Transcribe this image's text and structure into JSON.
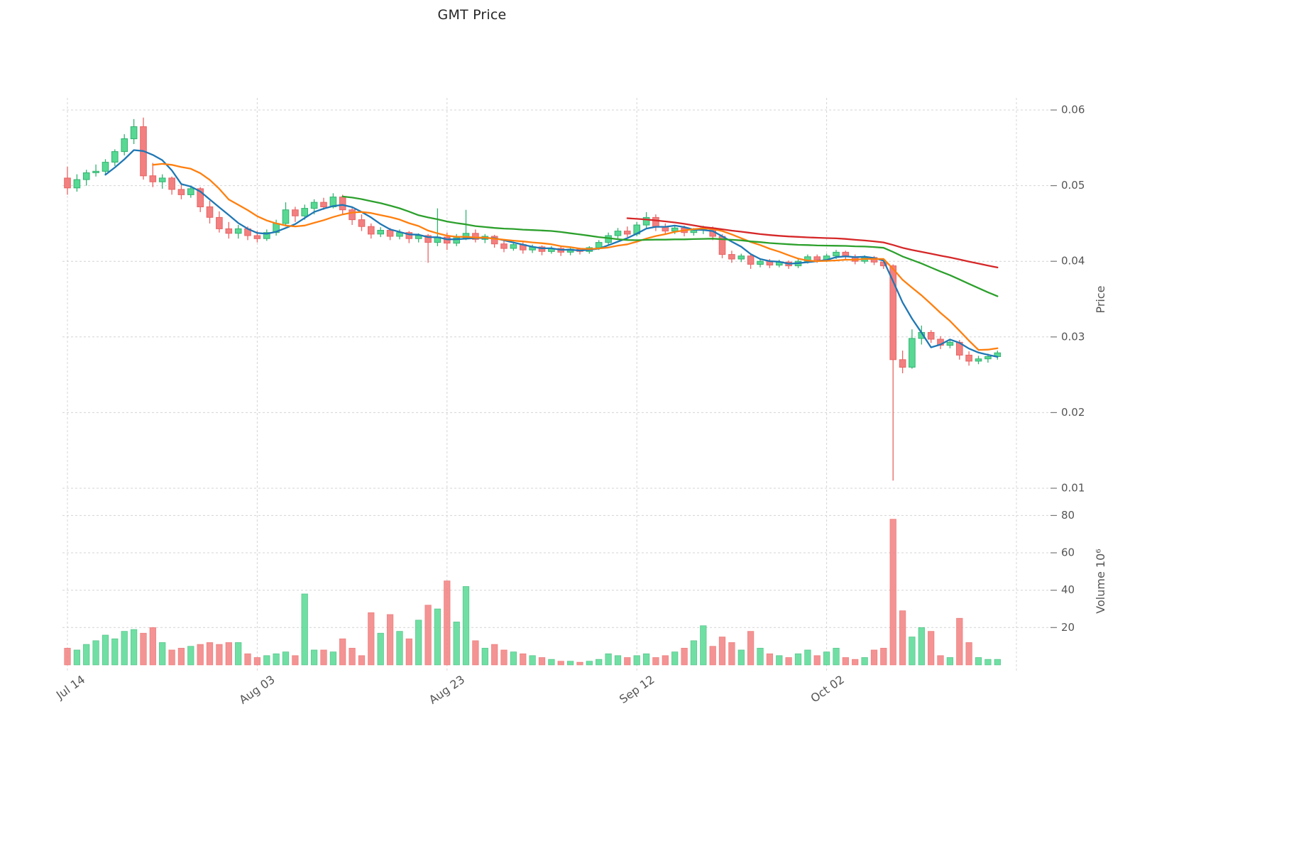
{
  "title": "GMT Price",
  "axes": {
    "price_label": "Price",
    "volume_label": "Volume  10⁶",
    "price_ticks": [
      0.01,
      0.02,
      0.03,
      0.04,
      0.05,
      0.06
    ],
    "volume_ticks": [
      20,
      40,
      60,
      80
    ],
    "x_ticks": [
      {
        "index": 0,
        "label": "Jul 14"
      },
      {
        "index": 20,
        "label": "Aug 03"
      },
      {
        "index": 40,
        "label": "Aug 23"
      },
      {
        "index": 60,
        "label": "Sep 12"
      },
      {
        "index": 80,
        "label": "Oct 02"
      }
    ],
    "extra_gridline_index": 100
  },
  "colors": {
    "up": "#57d993",
    "up_edge": "#33b271",
    "down": "#f28080",
    "down_edge": "#e96363",
    "grid": "#d4d4d4",
    "tick_text": "#555555",
    "tick_mark": "#777777"
  },
  "chart_data": {
    "type": "candlestick",
    "price_range": [
      0.01,
      0.06
    ],
    "volume_range": [
      0,
      90
    ],
    "volume_unit": "10^6",
    "grid": true,
    "moving_averages": [
      {
        "window": 5,
        "color": "#1f77b4"
      },
      {
        "window": 10,
        "color": "#ff7f0e"
      },
      {
        "window": 30,
        "color": "#2ca02c"
      },
      {
        "window": 60,
        "color": "#d62728"
      }
    ],
    "candles_format": [
      "open",
      "high",
      "low",
      "close",
      "volume_millions"
    ],
    "candles": [
      [
        0.051,
        0.0525,
        0.0488,
        0.0497,
        9
      ],
      [
        0.0497,
        0.0515,
        0.0492,
        0.0508,
        8
      ],
      [
        0.0508,
        0.0521,
        0.05,
        0.0517,
        11
      ],
      [
        0.0517,
        0.0528,
        0.0512,
        0.0519,
        13
      ],
      [
        0.0519,
        0.0535,
        0.0515,
        0.0531,
        16
      ],
      [
        0.0531,
        0.0548,
        0.0526,
        0.0545,
        14
      ],
      [
        0.0545,
        0.0568,
        0.054,
        0.0562,
        18
      ],
      [
        0.0562,
        0.0588,
        0.0555,
        0.0578,
        19
      ],
      [
        0.0578,
        0.059,
        0.0508,
        0.0513,
        17
      ],
      [
        0.0513,
        0.053,
        0.0498,
        0.0505,
        20
      ],
      [
        0.0505,
        0.0515,
        0.0496,
        0.051,
        12
      ],
      [
        0.051,
        0.0512,
        0.0488,
        0.0495,
        8
      ],
      [
        0.0495,
        0.0502,
        0.0482,
        0.0488,
        9
      ],
      [
        0.0488,
        0.05,
        0.0484,
        0.0496,
        10
      ],
      [
        0.0496,
        0.0498,
        0.0465,
        0.0472,
        11
      ],
      [
        0.0472,
        0.048,
        0.045,
        0.0458,
        12
      ],
      [
        0.0458,
        0.0466,
        0.0438,
        0.0443,
        11
      ],
      [
        0.0443,
        0.0452,
        0.043,
        0.0437,
        12
      ],
      [
        0.0437,
        0.0448,
        0.043,
        0.0443,
        12
      ],
      [
        0.0443,
        0.0446,
        0.0428,
        0.0434,
        6
      ],
      [
        0.0434,
        0.044,
        0.0425,
        0.043,
        4
      ],
      [
        0.043,
        0.0442,
        0.0427,
        0.0438,
        5
      ],
      [
        0.0438,
        0.0455,
        0.0434,
        0.045,
        6
      ],
      [
        0.045,
        0.0478,
        0.0446,
        0.0468,
        7
      ],
      [
        0.0468,
        0.0472,
        0.0452,
        0.046,
        5
      ],
      [
        0.046,
        0.0475,
        0.0455,
        0.047,
        38
      ],
      [
        0.047,
        0.0482,
        0.0462,
        0.0478,
        8
      ],
      [
        0.0478,
        0.0484,
        0.0468,
        0.0472,
        8
      ],
      [
        0.0472,
        0.049,
        0.047,
        0.0485,
        7
      ],
      [
        0.0485,
        0.0488,
        0.0462,
        0.0468,
        14
      ],
      [
        0.0468,
        0.0472,
        0.0448,
        0.0455,
        9
      ],
      [
        0.0455,
        0.0462,
        0.044,
        0.0446,
        5
      ],
      [
        0.0446,
        0.045,
        0.043,
        0.0436,
        28
      ],
      [
        0.0436,
        0.0445,
        0.0432,
        0.0441,
        17
      ],
      [
        0.0441,
        0.0444,
        0.0428,
        0.0433,
        27
      ],
      [
        0.0433,
        0.0442,
        0.0429,
        0.0438,
        18
      ],
      [
        0.0438,
        0.044,
        0.0424,
        0.043,
        14
      ],
      [
        0.043,
        0.0437,
        0.0425,
        0.0434,
        24
      ],
      [
        0.0434,
        0.0436,
        0.0398,
        0.0425,
        32
      ],
      [
        0.0425,
        0.047,
        0.042,
        0.0432,
        30
      ],
      [
        0.0432,
        0.0438,
        0.0415,
        0.0424,
        45
      ],
      [
        0.0424,
        0.0436,
        0.042,
        0.0431,
        23
      ],
      [
        0.0431,
        0.0468,
        0.0428,
        0.0437,
        42
      ],
      [
        0.0437,
        0.0442,
        0.0425,
        0.0429,
        13
      ],
      [
        0.0429,
        0.0436,
        0.0424,
        0.0433,
        9
      ],
      [
        0.0433,
        0.0435,
        0.0418,
        0.0423,
        11
      ],
      [
        0.0423,
        0.0428,
        0.0412,
        0.0417,
        8
      ],
      [
        0.0417,
        0.0426,
        0.0414,
        0.0422,
        7
      ],
      [
        0.0422,
        0.0425,
        0.041,
        0.0415,
        6
      ],
      [
        0.0415,
        0.0422,
        0.0411,
        0.0419,
        5
      ],
      [
        0.0419,
        0.0421,
        0.0408,
        0.0413,
        4
      ],
      [
        0.0413,
        0.042,
        0.041,
        0.0417,
        3
      ],
      [
        0.0417,
        0.0419,
        0.0407,
        0.0412,
        2
      ],
      [
        0.0412,
        0.0418,
        0.0408,
        0.0416,
        2
      ],
      [
        0.0416,
        0.0418,
        0.0409,
        0.0413,
        1.5
      ],
      [
        0.0413,
        0.042,
        0.041,
        0.0418,
        2
      ],
      [
        0.0418,
        0.0428,
        0.0415,
        0.0425,
        3
      ],
      [
        0.0425,
        0.0438,
        0.0422,
        0.0434,
        6
      ],
      [
        0.0434,
        0.0444,
        0.043,
        0.044,
        5
      ],
      [
        0.044,
        0.0446,
        0.0432,
        0.0436,
        4
      ],
      [
        0.0436,
        0.0452,
        0.0433,
        0.0448,
        5
      ],
      [
        0.0448,
        0.0465,
        0.0444,
        0.0458,
        6
      ],
      [
        0.0458,
        0.0462,
        0.044,
        0.0446,
        4
      ],
      [
        0.0446,
        0.045,
        0.0435,
        0.044,
        5
      ],
      [
        0.044,
        0.0448,
        0.0436,
        0.0444,
        7
      ],
      [
        0.0444,
        0.0447,
        0.0433,
        0.0438,
        9
      ],
      [
        0.0438,
        0.0444,
        0.0434,
        0.0441,
        13
      ],
      [
        0.0441,
        0.0447,
        0.0436,
        0.0444,
        21
      ],
      [
        0.0444,
        0.0446,
        0.0428,
        0.0433,
        10
      ],
      [
        0.0433,
        0.0436,
        0.0404,
        0.0409,
        15
      ],
      [
        0.0409,
        0.0414,
        0.0398,
        0.0403,
        12
      ],
      [
        0.0403,
        0.041,
        0.0399,
        0.0407,
        8
      ],
      [
        0.0407,
        0.0409,
        0.039,
        0.0396,
        18
      ],
      [
        0.0396,
        0.0404,
        0.0392,
        0.04,
        9
      ],
      [
        0.04,
        0.0403,
        0.0391,
        0.0395,
        6
      ],
      [
        0.0395,
        0.0402,
        0.0392,
        0.0399,
        5
      ],
      [
        0.0399,
        0.0401,
        0.039,
        0.0394,
        4
      ],
      [
        0.0394,
        0.0403,
        0.0391,
        0.04,
        6
      ],
      [
        0.04,
        0.0409,
        0.0397,
        0.0406,
        8
      ],
      [
        0.0406,
        0.0409,
        0.0398,
        0.0402,
        5
      ],
      [
        0.0402,
        0.041,
        0.0399,
        0.0407,
        7
      ],
      [
        0.0407,
        0.0415,
        0.0403,
        0.0412,
        9
      ],
      [
        0.0412,
        0.0414,
        0.0402,
        0.0406,
        4
      ],
      [
        0.0406,
        0.0409,
        0.0396,
        0.04,
        3
      ],
      [
        0.04,
        0.0408,
        0.0397,
        0.0405,
        4
      ],
      [
        0.0405,
        0.0407,
        0.0395,
        0.0399,
        8
      ],
      [
        0.0399,
        0.0402,
        0.039,
        0.0394,
        9
      ],
      [
        0.0394,
        0.0396,
        0.011,
        0.027,
        78
      ],
      [
        0.027,
        0.0282,
        0.0252,
        0.026,
        29
      ],
      [
        0.026,
        0.031,
        0.0258,
        0.0298,
        15
      ],
      [
        0.0298,
        0.0315,
        0.029,
        0.0306,
        20
      ],
      [
        0.0306,
        0.0309,
        0.0292,
        0.0297,
        18
      ],
      [
        0.0297,
        0.0301,
        0.0284,
        0.0289,
        5
      ],
      [
        0.0289,
        0.0297,
        0.0285,
        0.0293,
        4
      ],
      [
        0.0293,
        0.0296,
        0.027,
        0.0276,
        25
      ],
      [
        0.0276,
        0.0281,
        0.0262,
        0.0268,
        12
      ],
      [
        0.0268,
        0.0275,
        0.0264,
        0.0271,
        4
      ],
      [
        0.0271,
        0.0278,
        0.0266,
        0.0274,
        3
      ],
      [
        0.0274,
        0.0282,
        0.027,
        0.0279,
        3
      ]
    ]
  }
}
